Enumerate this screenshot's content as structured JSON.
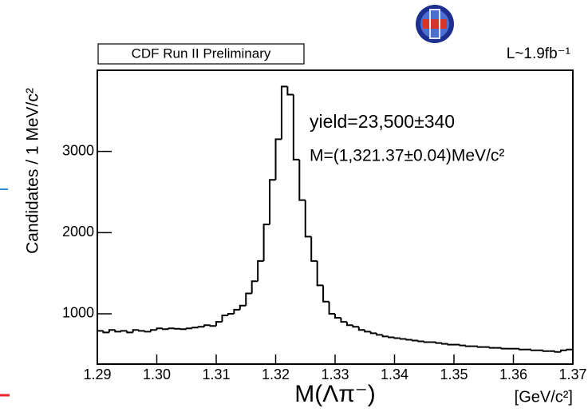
{
  "chart_data": {
    "type": "histogram",
    "label_box": "CDF Run II Preliminary",
    "luminosity": "L~1.9fb⁻¹",
    "annotations": [
      "yield=23,500±340",
      "M=(1,321.37±0.04)MeV/c²"
    ],
    "x_label": "M(Λπ⁻)",
    "x_unit": "[GeV/c²]",
    "y_label": "Candidates / 1 MeV/c²",
    "color": "#000000",
    "bins": [
      1.29,
      1.291,
      1.292,
      1.293,
      1.294,
      1.295,
      1.296,
      1.297,
      1.298,
      1.299,
      1.3,
      1.301,
      1.302,
      1.303,
      1.304,
      1.305,
      1.306,
      1.307,
      1.308,
      1.309,
      1.31,
      1.311,
      1.312,
      1.313,
      1.314,
      1.315,
      1.316,
      1.317,
      1.318,
      1.319,
      1.32,
      1.321,
      1.322,
      1.323,
      1.324,
      1.325,
      1.326,
      1.327,
      1.328,
      1.329,
      1.33,
      1.331,
      1.332,
      1.333,
      1.334,
      1.335,
      1.336,
      1.337,
      1.338,
      1.339,
      1.34,
      1.341,
      1.342,
      1.343,
      1.344,
      1.345,
      1.346,
      1.347,
      1.348,
      1.349,
      1.35,
      1.351,
      1.352,
      1.353,
      1.354,
      1.355,
      1.356,
      1.357,
      1.358,
      1.359,
      1.36,
      1.361,
      1.362,
      1.363,
      1.364,
      1.365,
      1.366,
      1.367,
      1.368,
      1.369,
      1.37
    ],
    "values": [
      790,
      770,
      800,
      780,
      790,
      770,
      800,
      790,
      780,
      800,
      820,
      810,
      820,
      815,
      810,
      820,
      830,
      840,
      860,
      850,
      900,
      980,
      1000,
      1050,
      1100,
      1250,
      1400,
      1650,
      2100,
      2650,
      3150,
      3800,
      3700,
      2900,
      2400,
      1950,
      1650,
      1350,
      1150,
      1000,
      950,
      900,
      860,
      840,
      800,
      780,
      760,
      740,
      720,
      710,
      700,
      690,
      680,
      670,
      660,
      650,
      650,
      640,
      630,
      620,
      620,
      610,
      600,
      600,
      590,
      590,
      580,
      580,
      570,
      570,
      570,
      560,
      560,
      550,
      550,
      540,
      540,
      530,
      550,
      560
    ],
    "xlim": [
      1.29,
      1.37
    ],
    "xticks": [
      1.29,
      {
        "value": 1.3,
        "label": "1.30"
      },
      1.31,
      1.32,
      1.33,
      1.34,
      1.35,
      1.36,
      1.37
    ],
    "ylim": [
      380,
      4000
    ],
    "yticks": [
      1000,
      2000,
      3000
    ]
  }
}
